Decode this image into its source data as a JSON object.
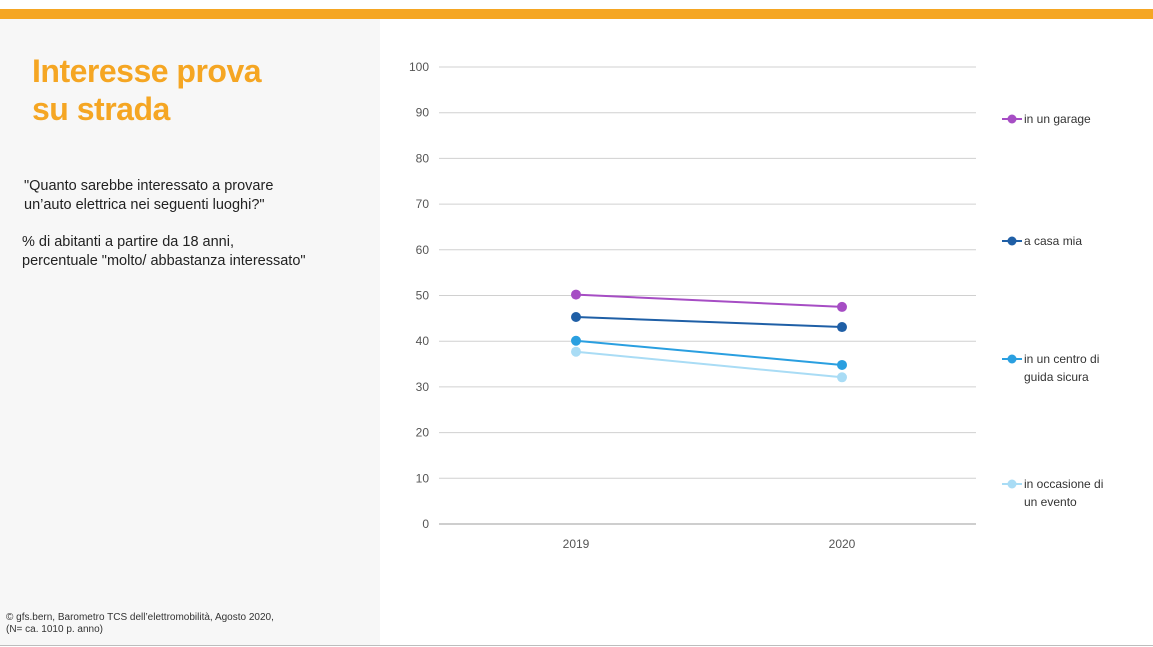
{
  "header": {
    "title_line1": "Interesse prova",
    "title_line2": "su strada",
    "question_line1": "\"Quanto sarebbe interessato  a provare",
    "question_line2": "un’auto elettrica nei seguenti luoghi?\"",
    "population_line1": "% di abitanti a partire da 18 anni,",
    "population_line2": "percentuale \"molto/ abbastanza interessato\"",
    "source_line1": "©  gfs.bern, Barometro TCS dell’elettromobilità, Agosto 2020,",
    "source_line2": "(N= ca. 1010 p. anno)"
  },
  "colors": {
    "accent": "#f5a623",
    "panel": "#f7f7f7"
  },
  "chart_data": {
    "type": "line",
    "x": [
      "2019",
      "2020"
    ],
    "ylim": [
      0,
      100
    ],
    "yticks": [
      0,
      10,
      20,
      30,
      40,
      50,
      60,
      70,
      80,
      90,
      100
    ],
    "grid": true,
    "legend_position": "right",
    "series": [
      {
        "name": "in un garage",
        "legend_lines": [
          "in un garage"
        ],
        "color": "#a64dc4",
        "values": [
          50.2,
          47.5
        ]
      },
      {
        "name": "a casa mia",
        "legend_lines": [
          "a casa mia"
        ],
        "color": "#1f5fa6",
        "values": [
          45.3,
          43.1
        ]
      },
      {
        "name": "in un centro di guida sicura",
        "legend_lines": [
          "in un centro di",
          "guida sicura"
        ],
        "color": "#2a9fe0",
        "values": [
          40.1,
          34.8
        ]
      },
      {
        "name": "in occasione di un evento",
        "legend_lines": [
          "in occasione di",
          "un evento"
        ],
        "color": "#a9dcf5",
        "values": [
          37.7,
          32.1
        ]
      }
    ]
  }
}
